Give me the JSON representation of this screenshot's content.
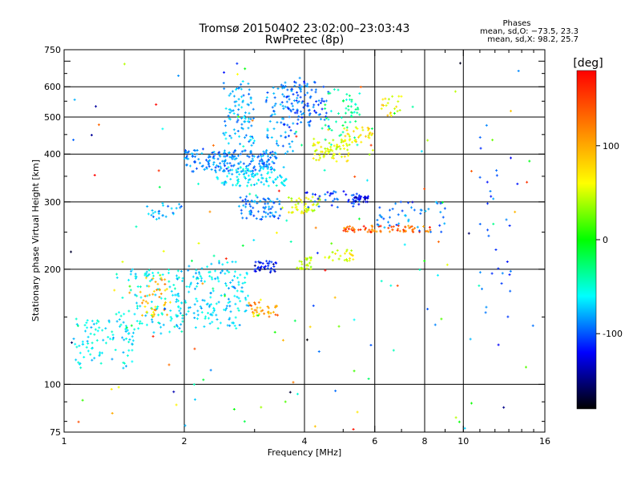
{
  "chart_data": {
    "type": "scatter",
    "title": "Tromsø 20150402 23:02:00–23:03:43",
    "subtitle": "RwPretec (8p)",
    "xlabel": "Frequency [MHz]",
    "ylabel": "Stationary phase Virtual Height [km]",
    "x_scale": "log",
    "y_scale": "log",
    "xlim": [
      1,
      16
    ],
    "ylim": [
      75,
      750
    ],
    "x_ticks": [
      1,
      2,
      4,
      6,
      8,
      10,
      16
    ],
    "y_ticks": [
      75,
      100,
      200,
      300,
      400,
      500,
      600,
      750
    ],
    "x_gridlines": [
      2,
      4,
      6,
      8,
      10
    ],
    "y_gridlines": [
      100,
      200,
      300,
      400,
      500,
      600
    ],
    "grid": true,
    "phase_stats": {
      "heading": "Phases",
      "line_o": "mean, sd,O: −73.5, 23.3",
      "line_x": "mean, sd,X:  98.2, 25.7"
    },
    "colorbar": {
      "label": "[deg]",
      "ticks": [
        100,
        0,
        -100
      ],
      "range": [
        -180,
        180
      ],
      "colors_top_to_bottom": [
        "#ff0000",
        "#ff7f00",
        "#ffff00",
        "#00ff00",
        "#00ffff",
        "#0000ff",
        "#000000"
      ]
    },
    "clusters": [
      {
        "x": [
          1.05,
          1.5
        ],
        "y": [
          110,
          150
        ],
        "phase": -65,
        "n": 90
      },
      {
        "x": [
          1.35,
          2.0
        ],
        "y": [
          135,
          200
        ],
        "phase": -60,
        "n": 110
      },
      {
        "x": [
          1.55,
          1.85
        ],
        "y": [
          150,
          190
        ],
        "phase": 120,
        "n": 45
      },
      {
        "x": [
          1.9,
          2.9
        ],
        "y": [
          140,
          210
        ],
        "phase": -70,
        "n": 170
      },
      {
        "x": [
          1.6,
          2.0
        ],
        "y": [
          270,
          300
        ],
        "phase": -90,
        "n": 25
      },
      {
        "x": [
          2.0,
          3.4
        ],
        "y": [
          360,
          410
        ],
        "phase": -100,
        "n": 190
      },
      {
        "x": [
          2.4,
          3.6
        ],
        "y": [
          330,
          370
        ],
        "phase": -65,
        "n": 100
      },
      {
        "x": [
          2.5,
          3.0
        ],
        "y": [
          420,
          620
        ],
        "phase": -85,
        "n": 90
      },
      {
        "x": [
          2.7,
          3.5
        ],
        "y": [
          270,
          310
        ],
        "phase": -100,
        "n": 70
      },
      {
        "x": [
          3.0,
          3.4
        ],
        "y": [
          195,
          210
        ],
        "phase": -140,
        "n": 35
      },
      {
        "x": [
          2.9,
          3.5
        ],
        "y": [
          150,
          165
        ],
        "phase": 130,
        "n": 35
      },
      {
        "x": [
          3.2,
          3.8
        ],
        "y": [
          400,
          600
        ],
        "phase": -95,
        "n": 60
      },
      {
        "x": [
          3.5,
          4.6
        ],
        "y": [
          470,
          620
        ],
        "phase": -110,
        "n": 110
      },
      {
        "x": [
          3.6,
          4.4
        ],
        "y": [
          280,
          310
        ],
        "phase": 90,
        "n": 45
      },
      {
        "x": [
          3.8,
          4.2
        ],
        "y": [
          200,
          215
        ],
        "phase": 80,
        "n": 25
      },
      {
        "x": [
          4.2,
          5.2
        ],
        "y": [
          380,
          440
        ],
        "phase": 90,
        "n": 70
      },
      {
        "x": [
          4.5,
          5.5
        ],
        "y": [
          420,
          600
        ],
        "phase": -30,
        "n": 55
      },
      {
        "x": [
          4.0,
          5.5
        ],
        "y": [
          290,
          320
        ],
        "phase": -120,
        "n": 40
      },
      {
        "x": [
          4.5,
          5.3
        ],
        "y": [
          210,
          225
        ],
        "phase": 90,
        "n": 25
      },
      {
        "x": [
          5.3,
          5.8
        ],
        "y": [
          300,
          310
        ],
        "phase": -145,
        "n": 25
      },
      {
        "x": [
          5.0,
          6.0
        ],
        "y": [
          430,
          470
        ],
        "phase": 100,
        "n": 35
      },
      {
        "x": [
          5.0,
          8.5
        ],
        "y": [
          250,
          260
        ],
        "phase": 150,
        "n": 70
      },
      {
        "x": [
          6.0,
          9.0
        ],
        "y": [
          250,
          300
        ],
        "phase": -100,
        "n": 45
      },
      {
        "x": [
          6.2,
          7.0
        ],
        "y": [
          500,
          600
        ],
        "phase": 100,
        "n": 20
      },
      {
        "x": [
          11.0,
          13.5
        ],
        "y": [
          150,
          650
        ],
        "phase": -110,
        "n": 30
      },
      {
        "x": [
          1.0,
          15.0
        ],
        "y": [
          75,
          700
        ],
        "phase": 0,
        "n": 160
      }
    ]
  }
}
